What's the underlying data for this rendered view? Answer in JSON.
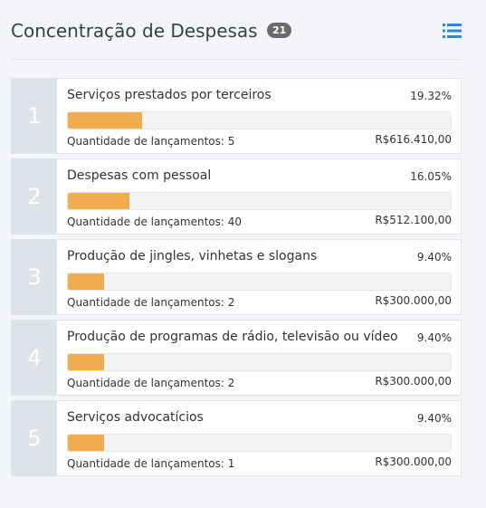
{
  "header": {
    "title": "Concentração de Despesas",
    "badge": "21"
  },
  "colors": {
    "bar_fill": "#f0ad4e",
    "badge_bg": "#6b6b6b",
    "icon": "#2e86de"
  },
  "icons": {
    "view_toggle": "list-icon"
  },
  "items": [
    {
      "rank": "1",
      "name": "Serviços prestados por terceiros",
      "percent": "19.32%",
      "share": 0.1932,
      "count_label": "Quantidade de lançamentos: 5",
      "amount": "R$616.410,00"
    },
    {
      "rank": "2",
      "name": "Despesas com pessoal",
      "percent": "16.05%",
      "share": 0.1605,
      "count_label": "Quantidade de lançamentos: 40",
      "amount": "R$512.100,00"
    },
    {
      "rank": "3",
      "name": "Produção de jingles, vinhetas e slogans",
      "percent": "9.40%",
      "share": 0.094,
      "count_label": "Quantidade de lançamentos: 2",
      "amount": "R$300.000,00"
    },
    {
      "rank": "4",
      "name": "Produção de programas de rádio, televisão ou vídeo",
      "percent": "9.40%",
      "share": 0.094,
      "count_label": "Quantidade de lançamentos: 2",
      "amount": "R$300.000,00"
    },
    {
      "rank": "5",
      "name": "Serviços advocatícios",
      "percent": "9.40%",
      "share": 0.094,
      "count_label": "Quantidade de lançamentos: 1",
      "amount": "R$300.000,00"
    }
  ]
}
